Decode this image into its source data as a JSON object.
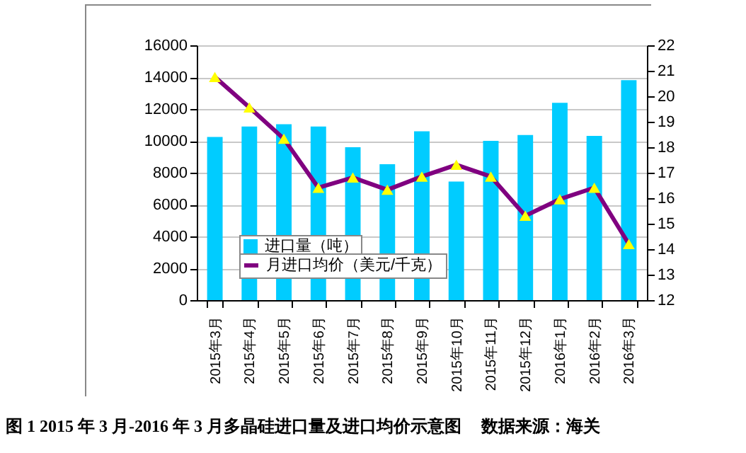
{
  "chart_data": {
    "type": "bar",
    "title": "图 1   2015 年 3 月-2016 年 3 月多晶硅进口量及进口均价示意图",
    "annotations": [
      "数据来源：海关"
    ],
    "categories": [
      "2015年3月",
      "2015年4月",
      "2015年5月",
      "2015年6月",
      "2015年7月",
      "2015年8月",
      "2015年9月",
      "2015年10月",
      "2015年11月",
      "2015年12月",
      "2016年1月",
      "2016年2月",
      "2016年3月"
    ],
    "series": [
      {
        "name": "进口量（吨）",
        "color": "#00ccff",
        "values": [
          10250,
          10900,
          11050,
          10900,
          9600,
          8530,
          10600,
          7440,
          10000,
          10370,
          12390,
          10310,
          13810
        ]
      },
      {
        "name": "月进口均价（美元/千克）",
        "type": "line",
        "axis": "y2",
        "color": "#800080",
        "marker": "triangle",
        "values": [
          20.76,
          19.56,
          18.33,
          16.41,
          16.81,
          16.33,
          16.85,
          17.31,
          16.85,
          15.31,
          15.96,
          16.41,
          14.2
        ]
      }
    ],
    "ylim": [
      0,
      16000
    ],
    "yticks": [
      0,
      2000,
      4000,
      6000,
      8000,
      10000,
      12000,
      14000,
      16000
    ],
    "y2lim": [
      12,
      22
    ],
    "y2ticks": [
      12,
      13,
      14,
      15,
      16,
      17,
      18,
      19,
      20,
      21,
      22
    ],
    "grid": "y",
    "legend": "bottom left"
  }
}
